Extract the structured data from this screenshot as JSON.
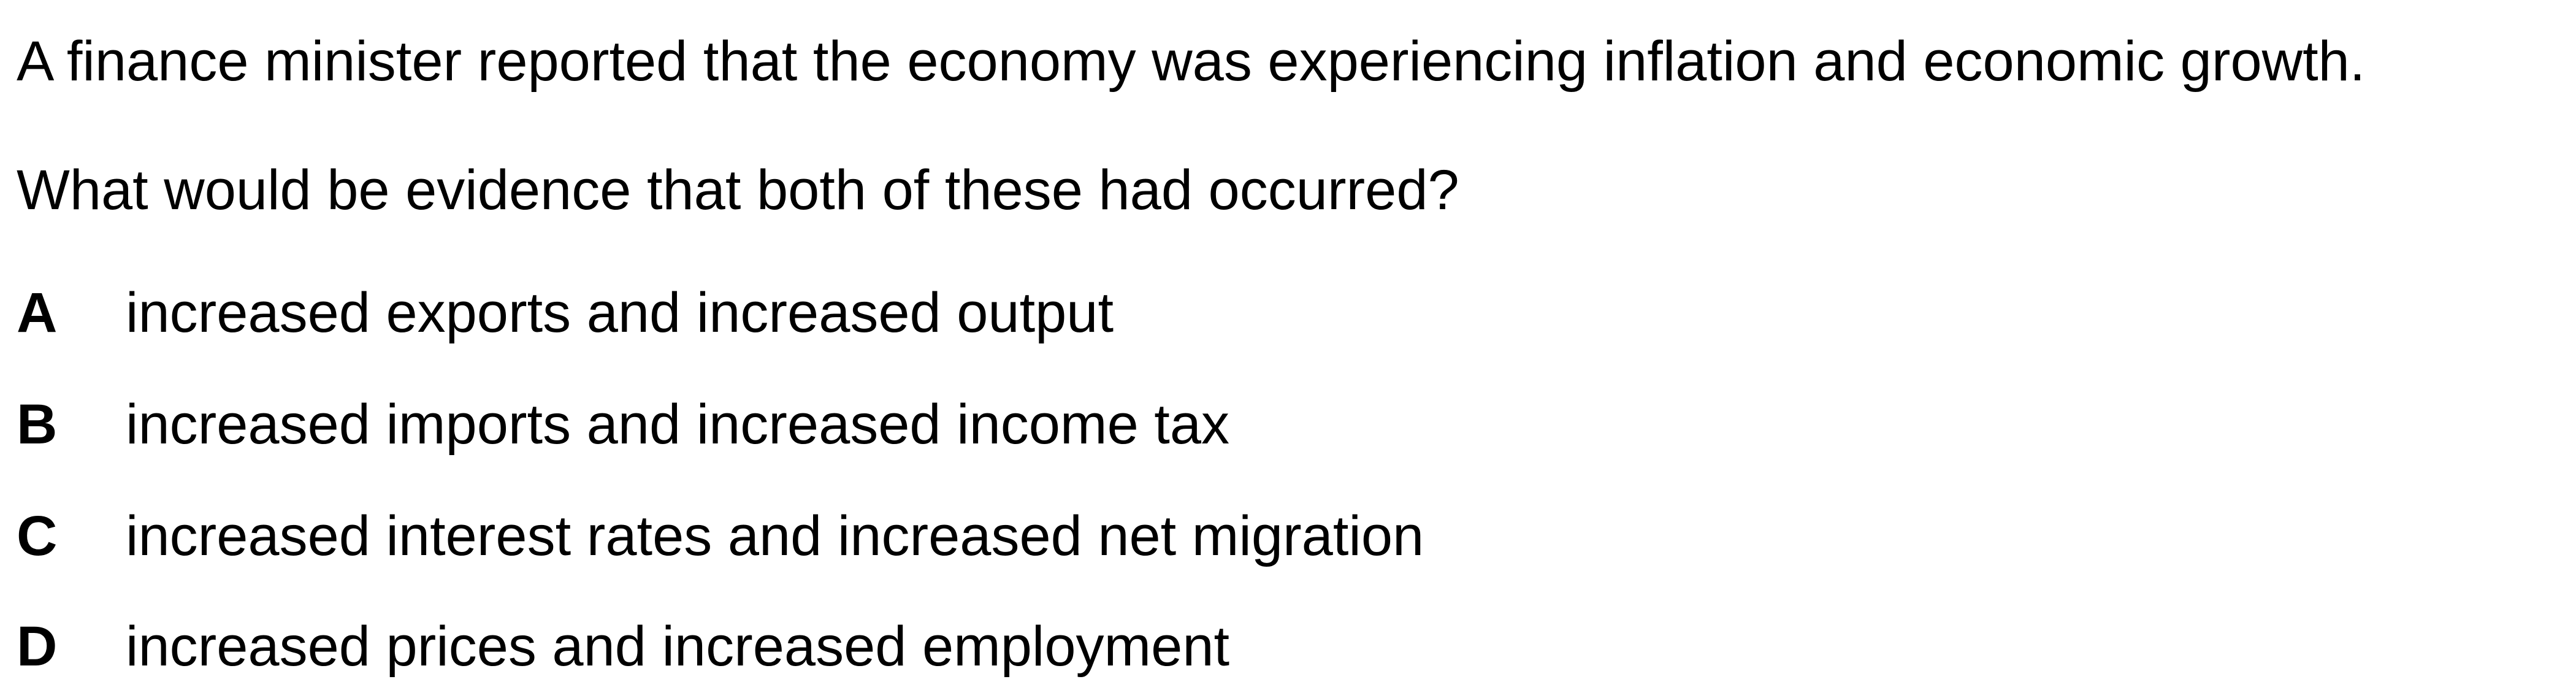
{
  "intro": "A finance minister reported that the economy was experiencing inflation and economic growth.",
  "question": "What would be evidence that both of these had occurred?",
  "options": [
    {
      "letter": "A",
      "text": "increased exports and increased output"
    },
    {
      "letter": "B",
      "text": "increased imports and increased income tax"
    },
    {
      "letter": "C",
      "text": "increased interest rates and increased net migration"
    },
    {
      "letter": "D",
      "text": "increased prices and increased employment"
    }
  ]
}
